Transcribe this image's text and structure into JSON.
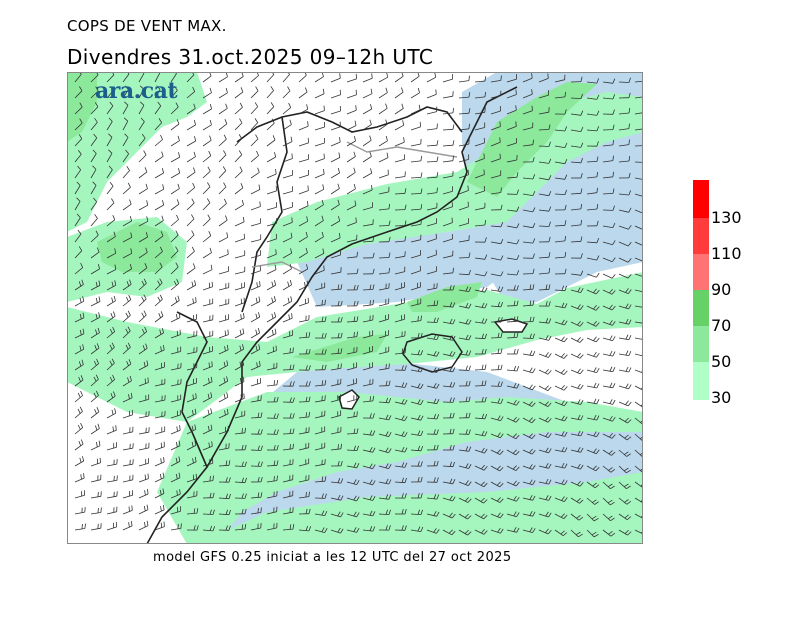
{
  "header": {
    "title": "COPS DE VENT MAX.",
    "subtitle": "Divendres  31.oct.2025 09–12h UTC"
  },
  "logo": {
    "text": "ara.cat"
  },
  "footer": {
    "text": "model GFS 0.25 iniciat a les 12 UTC del 27 oct 2025"
  },
  "legend": {
    "levels": [
      {
        "label": "30",
        "color": "#b0ffc8"
      },
      {
        "label": "50",
        "color": "#8ce89a"
      },
      {
        "label": "70",
        "color": "#66d166"
      },
      {
        "label": "90",
        "color": "#ff7373"
      },
      {
        "label": "110",
        "color": "#ff3b3b"
      },
      {
        "label": "130",
        "color": "#ff0000"
      }
    ]
  },
  "map": {
    "land_color": "#ffffff",
    "sea_low_color": "#bcd8ec",
    "fill_colors": {
      "light": "#a4f6be",
      "medium": "#8ce89a",
      "strong": "#66d166"
    },
    "barb_color": "#333333"
  }
}
